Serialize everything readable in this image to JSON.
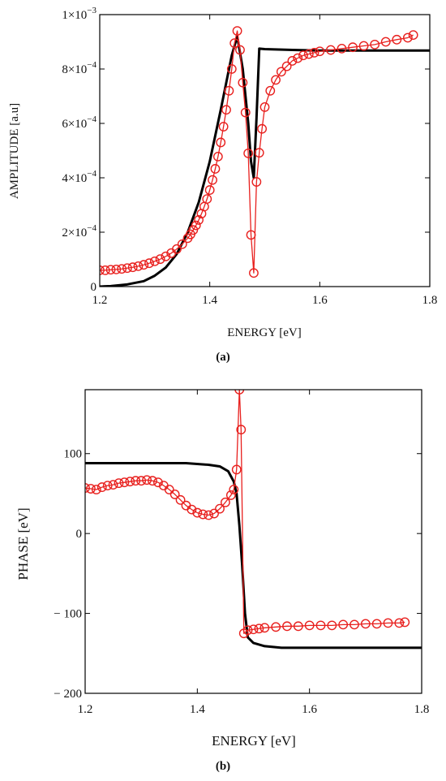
{
  "chart_data": [
    {
      "type": "line",
      "caption": "(a)",
      "xlabel": "ENERGY [eV]",
      "ylabel": "AMPLITUDE [a.u]",
      "xlim": [
        1.2,
        1.8
      ],
      "ylim": [
        0,
        0.001
      ],
      "xticks": [
        {
          "value": 1.2,
          "label": "1.2"
        },
        {
          "value": 1.4,
          "label": "1.4"
        },
        {
          "value": 1.6,
          "label": "1.6"
        },
        {
          "value": 1.8,
          "label": "1.8"
        }
      ],
      "yticks": [
        {
          "value": 0,
          "mant": "0",
          "exp": ""
        },
        {
          "value": 0.0002,
          "mant": "2×10",
          "exp": "−4"
        },
        {
          "value": 0.0004,
          "mant": "4×10",
          "exp": "−4"
        },
        {
          "value": 0.0006,
          "mant": "6×10",
          "exp": "−4"
        },
        {
          "value": 0.0008,
          "mant": "8×10",
          "exp": "−4"
        },
        {
          "value": 0.001,
          "mant": "1×10",
          "exp": "−3"
        }
      ],
      "grid": false,
      "series": [
        {
          "style": "line",
          "color": "#000000",
          "x": [
            1.2,
            1.22,
            1.25,
            1.28,
            1.3,
            1.32,
            1.34,
            1.36,
            1.38,
            1.4,
            1.42,
            1.44,
            1.45,
            1.46,
            1.47,
            1.475,
            1.48,
            1.485,
            1.49,
            1.5,
            1.55,
            1.6,
            1.7,
            1.8
          ],
          "y": [
            0.0,
            2e-06,
            8e-06,
            2e-05,
            4e-05,
            7e-05,
            0.00012,
            0.0002,
            0.00031,
            0.00046,
            0.00065,
            0.00085,
            0.00092,
            0.0008,
            0.0006,
            0.00046,
            0.0004,
            0.00062,
            0.000875,
            0.000873,
            0.00087,
            0.000868,
            0.000868,
            0.000868
          ]
        },
        {
          "style": "line-marker",
          "marker": "circle",
          "color": "#e8201e",
          "x": [
            1.2,
            1.21,
            1.22,
            1.23,
            1.24,
            1.25,
            1.26,
            1.27,
            1.28,
            1.29,
            1.3,
            1.31,
            1.32,
            1.33,
            1.34,
            1.35,
            1.36,
            1.365,
            1.37,
            1.375,
            1.38,
            1.385,
            1.39,
            1.395,
            1.4,
            1.405,
            1.41,
            1.415,
            1.42,
            1.425,
            1.43,
            1.435,
            1.44,
            1.445,
            1.45,
            1.455,
            1.46,
            1.465,
            1.47,
            1.475,
            1.48,
            1.485,
            1.49,
            1.495,
            1.5,
            1.51,
            1.52,
            1.53,
            1.54,
            1.55,
            1.56,
            1.57,
            1.58,
            1.59,
            1.6,
            1.62,
            1.64,
            1.66,
            1.68,
            1.7,
            1.72,
            1.74,
            1.76,
            1.77
          ],
          "y": [
            6e-05,
            6e-05,
            6.2e-05,
            6.3e-05,
            6.5e-05,
            6.8e-05,
            7.1e-05,
            7.5e-05,
            8e-05,
            8.6e-05,
            9.3e-05,
            0.000101,
            0.000111,
            0.000123,
            0.000138,
            0.000156,
            0.000178,
            0.000192,
            0.000208,
            0.000225,
            0.000245,
            0.000268,
            0.000294,
            0.000322,
            0.000355,
            0.000392,
            0.000433,
            0.000478,
            0.00053,
            0.000588,
            0.00065,
            0.00072,
            0.0008,
            0.000895,
            0.00094,
            0.00087,
            0.00075,
            0.00064,
            0.00049,
            0.00019,
            5e-05,
            0.000385,
            0.000492,
            0.00058,
            0.00066,
            0.00072,
            0.00076,
            0.00079,
            0.00081,
            0.00083,
            0.00084,
            0.00085,
            0.000855,
            0.00086,
            0.000865,
            0.00087,
            0.000875,
            0.00088,
            0.000885,
            0.00089,
            0.0009,
            0.000908,
            0.000915,
            0.000925
          ]
        }
      ]
    },
    {
      "type": "line",
      "caption": "(b)",
      "xlabel": "ENERGY [eV]",
      "ylabel": "PHASE [eV]",
      "xlim": [
        1.2,
        1.8
      ],
      "ylim": [
        -200,
        180
      ],
      "xticks": [
        {
          "value": 1.2,
          "label": "1.2"
        },
        {
          "value": 1.4,
          "label": "1.4"
        },
        {
          "value": 1.6,
          "label": "1.6"
        },
        {
          "value": 1.8,
          "label": "1.8"
        }
      ],
      "yticks": [
        {
          "value": -200,
          "label": "− 200"
        },
        {
          "value": -100,
          "label": "− 100"
        },
        {
          "value": 0,
          "label": "0"
        },
        {
          "value": 100,
          "label": "100"
        }
      ],
      "grid": false,
      "series": [
        {
          "style": "line",
          "color": "#000000",
          "x": [
            1.2,
            1.3,
            1.38,
            1.42,
            1.44,
            1.455,
            1.465,
            1.47,
            1.475,
            1.48,
            1.485,
            1.49,
            1.5,
            1.52,
            1.55,
            1.6,
            1.7,
            1.8
          ],
          "y": [
            88,
            88,
            88,
            86,
            84,
            78,
            65,
            50,
            10,
            -40,
            -100,
            -130,
            -137,
            -141,
            -143,
            -143,
            -143,
            -143
          ]
        },
        {
          "style": "line-marker",
          "marker": "circle",
          "color": "#e8201e",
          "x": [
            1.2,
            1.21,
            1.22,
            1.23,
            1.24,
            1.25,
            1.26,
            1.27,
            1.28,
            1.29,
            1.3,
            1.31,
            1.32,
            1.33,
            1.34,
            1.35,
            1.36,
            1.37,
            1.38,
            1.39,
            1.4,
            1.41,
            1.42,
            1.43,
            1.44,
            1.45,
            1.46,
            1.465,
            1.47,
            1.475,
            1.478,
            1.483,
            1.49,
            1.5,
            1.51,
            1.52,
            1.54,
            1.56,
            1.58,
            1.6,
            1.62,
            1.64,
            1.66,
            1.68,
            1.7,
            1.72,
            1.74,
            1.76,
            1.77
          ],
          "y": [
            57,
            56,
            55,
            58,
            60,
            61,
            63,
            64,
            65,
            66,
            66,
            67,
            66,
            64,
            60,
            55,
            49,
            42,
            35,
            30,
            26,
            24,
            23,
            25,
            31,
            39,
            48,
            55,
            80,
            180,
            130,
            -125,
            -121,
            -120,
            -119,
            -118,
            -117,
            -116,
            -116,
            -115,
            -115,
            -115,
            -114,
            -114,
            -113,
            -113,
            -112,
            -112,
            -111
          ]
        }
      ]
    }
  ]
}
